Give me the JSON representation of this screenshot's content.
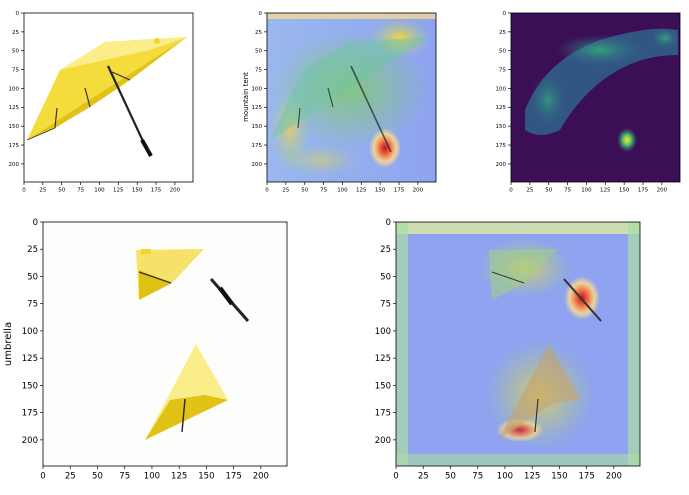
{
  "panels": [
    {
      "id": "orig-top",
      "ylabel": "",
      "xticks": [
        "0",
        "25",
        "50",
        "75",
        "100",
        "125",
        "150",
        "175",
        "200"
      ],
      "yticks": [
        "0",
        "25",
        "50",
        "75",
        "100",
        "125",
        "150",
        "175",
        "200"
      ]
    },
    {
      "id": "cam-top",
      "ylabel": "mountain tent",
      "xticks": [
        "0",
        "25",
        "50",
        "75",
        "100",
        "125",
        "150",
        "175",
        "200"
      ],
      "yticks": [
        "0",
        "25",
        "50",
        "75",
        "100",
        "125",
        "150",
        "175",
        "200"
      ]
    },
    {
      "id": "saliency-top",
      "ylabel": "",
      "xticks": [
        "0",
        "25",
        "50",
        "75",
        "100",
        "125",
        "150",
        "175",
        "200"
      ],
      "yticks": [
        "0",
        "25",
        "50",
        "75",
        "100",
        "125",
        "150",
        "175",
        "200"
      ]
    },
    {
      "id": "perturbed-bottom",
      "ylabel": "umbrella",
      "xticks": [
        "0",
        "25",
        "50",
        "75",
        "100",
        "125",
        "150",
        "175",
        "200"
      ],
      "yticks": [
        "0",
        "25",
        "50",
        "75",
        "100",
        "125",
        "150",
        "175",
        "200"
      ]
    },
    {
      "id": "cam-bottom",
      "ylabel": "",
      "xticks": [
        "0",
        "25",
        "50",
        "75",
        "100",
        "125",
        "150",
        "175",
        "200"
      ],
      "yticks": [
        "0",
        "25",
        "50",
        "75",
        "100",
        "125",
        "150",
        "175",
        "200"
      ]
    }
  ],
  "colors": {
    "umbrella_yellow": "#f2d52a",
    "umbrella_light": "#fbee8a",
    "cam_blue": "#8fa3f0",
    "cam_red": "#d73027",
    "viridis_dark": "#3b0f56",
    "viridis_teal": "#2a9d8f",
    "viridis_green": "#7ad151"
  }
}
